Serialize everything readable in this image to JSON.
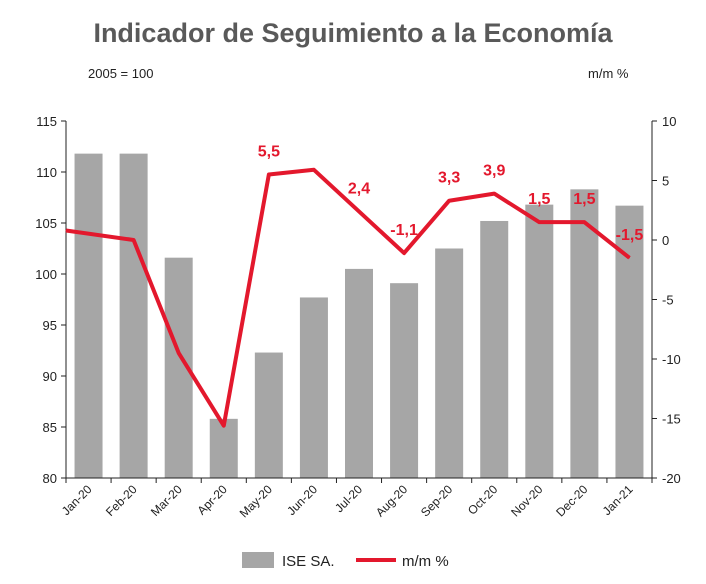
{
  "colors": {
    "bar": "#a6a6a6",
    "line": "#e3182d",
    "axis": "#222222"
  },
  "chart_data": {
    "type": "bar",
    "title": "Indicador de Seguimiento a la Economía",
    "left_unit": "2005 = 100",
    "right_unit": "m/m %",
    "categories": [
      "Jan-20",
      "Feb-20",
      "Mar-20",
      "Apr-20",
      "May-20",
      "Jun-20",
      "Jul-20",
      "Aug-20",
      "Sep-20",
      "Oct-20",
      "Nov-20",
      "Dec-20",
      "Jan-21"
    ],
    "ylim_left": [
      80,
      115
    ],
    "yticks_left": [
      80,
      85,
      90,
      95,
      100,
      105,
      110,
      115
    ],
    "ylim_right": [
      -20,
      10
    ],
    "yticks_right": [
      -20,
      -15,
      -10,
      -5,
      0,
      5,
      10
    ],
    "series": [
      {
        "name": "ISE SA.",
        "type": "bar",
        "axis": "left",
        "values": [
          111.8,
          111.8,
          101.6,
          85.8,
          92.3,
          97.7,
          100.5,
          99.1,
          102.5,
          105.2,
          106.8,
          108.3,
          106.7
        ]
      },
      {
        "name": "m/m %",
        "type": "line",
        "axis": "right",
        "values": [
          0.8,
          0.0,
          -9.5,
          -15.6,
          5.5,
          5.9,
          2.4,
          -1.1,
          3.3,
          3.9,
          1.5,
          1.5,
          -1.5
        ]
      }
    ],
    "data_labels": [
      {
        "index": 4,
        "text": "5,5"
      },
      {
        "index": 6,
        "text": "2,4"
      },
      {
        "index": 7,
        "text": "-1,1"
      },
      {
        "index": 8,
        "text": "3,3"
      },
      {
        "index": 9,
        "text": "3,9"
      },
      {
        "index": 10,
        "text": "1,5"
      },
      {
        "index": 11,
        "text": "1,5"
      },
      {
        "index": 12,
        "text": "-1,5"
      }
    ],
    "legend_position": "bottom",
    "grid": false
  }
}
